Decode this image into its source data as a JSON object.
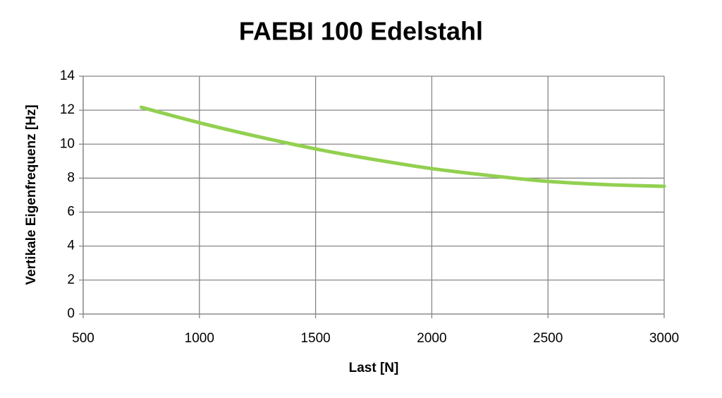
{
  "chart_data": {
    "type": "line",
    "title": "FAEBI 100 Edelstahl",
    "x_label": "Last [N]",
    "y_label": "Vertikale Eigenfrequenz [Hz]",
    "x": [
      750,
      1000,
      1250,
      1500,
      1750,
      2000,
      2250,
      2500,
      2750,
      3000
    ],
    "series": [
      {
        "name": "FAEBI 100 Edelstahl",
        "color": "#92d050",
        "values": [
          12.17,
          11.26,
          10.45,
          9.72,
          9.1,
          8.56,
          8.15,
          7.81,
          7.62,
          7.52
        ]
      }
    ],
    "xlim": [
      500,
      3000
    ],
    "xticks": [
      500,
      1000,
      1500,
      2000,
      2500,
      3000
    ],
    "ylim": [
      0,
      14
    ],
    "yticks": [
      0,
      2,
      4,
      6,
      8,
      10,
      12,
      14
    ],
    "grid": true
  }
}
